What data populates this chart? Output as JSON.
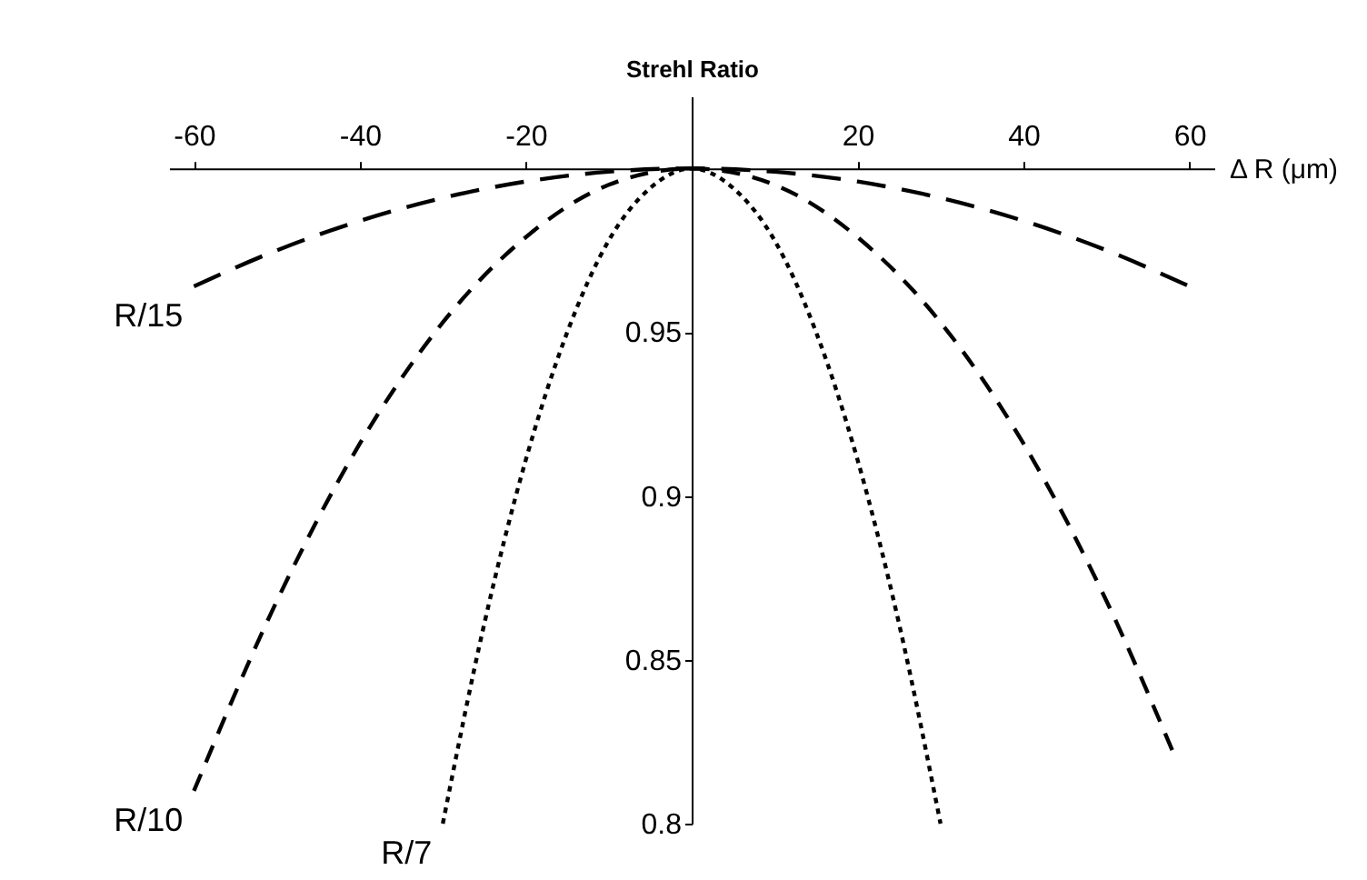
{
  "chart_data": {
    "type": "line",
    "ylabel": "Strehl Ratio",
    "xlabel": "Δ R (μm)",
    "xlim": [
      -63,
      63
    ],
    "xticks": [
      -60,
      -40,
      -20,
      20,
      40,
      60
    ],
    "ylim": [
      0.8,
      1.022
    ],
    "yticks": [
      0.8,
      0.85,
      0.9,
      0.95
    ],
    "series": [
      {
        "name": "R/15",
        "color": "#000000",
        "line_style": "dashed",
        "x": [
          -60,
          -50,
          -40,
          -30,
          -20,
          -10,
          0,
          10,
          20,
          30,
          40,
          50,
          60
        ],
        "values": [
          0.964,
          0.975,
          0.984,
          0.991,
          0.996,
          0.999,
          1,
          0.999,
          0.996,
          0.991,
          0.984,
          0.975,
          0.964
        ]
      },
      {
        "name": "R/10",
        "color": "#000000",
        "line_style": "dashed",
        "x": [
          -60,
          -50,
          -40,
          -30,
          -20,
          -10,
          0,
          10,
          20,
          30,
          40,
          50,
          58
        ],
        "values": [
          0.81,
          0.868,
          0.916,
          0.953,
          0.979,
          0.995,
          1,
          0.995,
          0.979,
          0.953,
          0.916,
          0.868,
          0.822
        ]
      },
      {
        "name": "R/7",
        "color": "#000000",
        "line_style": "dotted",
        "x": [
          -30,
          -25,
          -20,
          -15,
          -10,
          -5,
          0,
          5,
          10,
          15,
          20,
          25,
          30
        ],
        "values": [
          0.8,
          0.861,
          0.911,
          0.95,
          0.978,
          0.994,
          1,
          0.994,
          0.978,
          0.95,
          0.911,
          0.861,
          0.8
        ]
      }
    ]
  }
}
